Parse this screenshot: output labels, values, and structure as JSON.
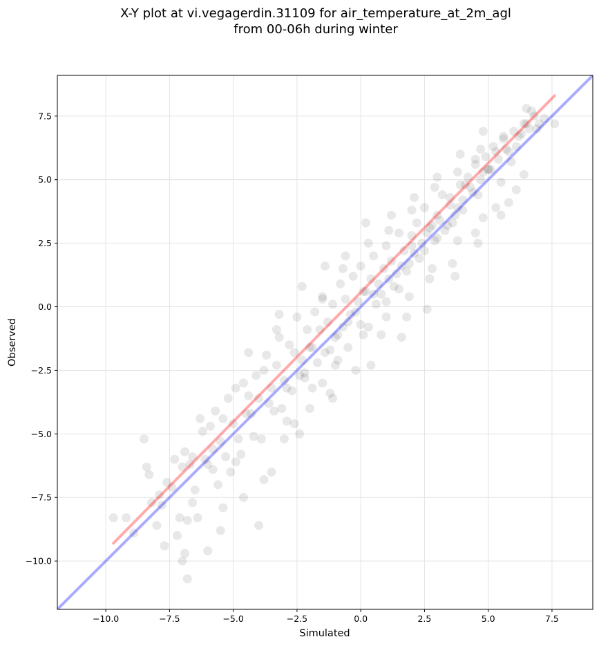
{
  "chart_data": {
    "type": "scatter",
    "title": "X-Y plot at vi.vegagerdin.31109 for air_temperature_at_2m_agl",
    "subtitle": "from 00-06h during winter",
    "xlabel": "Simulated",
    "ylabel": "Observed",
    "xlim": [
      -11.9,
      9.1
    ],
    "ylim": [
      -11.9,
      9.1
    ],
    "xticks": [
      -10.0,
      -7.5,
      -5.0,
      -2.5,
      0.0,
      2.5,
      5.0,
      7.5
    ],
    "xtick_labels": [
      "−10.0",
      "−7.5",
      "−5.0",
      "−2.5",
      "0.0",
      "2.5",
      "5.0",
      "7.5"
    ],
    "yticks": [
      -10.0,
      -7.5,
      -5.0,
      -2.5,
      0.0,
      2.5,
      5.0,
      7.5
    ],
    "ytick_labels": [
      "−10.0",
      "−7.5",
      "−5.0",
      "−2.5",
      "0.0",
      "2.5",
      "5.0",
      "7.5"
    ],
    "grid": true,
    "points": {
      "color": "#000000",
      "opacity": 0.09,
      "x": [
        -9.7,
        -9.2,
        -8.5,
        -8.3,
        -8.2,
        -8.0,
        -7.9,
        -7.8,
        -7.6,
        -7.4,
        -7.3,
        -7.1,
        -7.0,
        -6.9,
        -6.8,
        -6.7,
        -6.6,
        -6.5,
        -6.3,
        -6.2,
        -6.0,
        -5.9,
        -5.8,
        -5.7,
        -5.5,
        -5.4,
        -5.2,
        -5.0,
        -4.9,
        -4.8,
        -4.6,
        -4.4,
        -4.3,
        -4.1,
        -4.0,
        -3.8,
        -3.7,
        -3.5,
        -3.3,
        -3.2,
        -3.0,
        -2.8,
        -2.6,
        -2.5,
        -2.3,
        -2.1,
        -2.0,
        -1.8,
        -1.6,
        -1.5,
        -1.3,
        -1.1,
        -1.0,
        -0.8,
        -0.6,
        -0.5,
        -0.3,
        -0.1,
        0.0,
        0.2,
        0.4,
        0.5,
        0.7,
        0.9,
        1.0,
        1.2,
        1.4,
        1.5,
        1.7,
        1.9,
        2.0,
        2.2,
        2.4,
        2.5,
        2.7,
        2.9,
        3.0,
        3.2,
        3.4,
        3.5,
        3.7,
        3.9,
        4.0,
        4.2,
        4.4,
        4.5,
        4.7,
        4.9,
        5.0,
        5.2,
        5.4,
        5.6,
        5.8,
        6.0,
        6.2,
        6.4,
        6.6,
        6.8,
        7.0,
        7.2,
        7.6,
        -8.9,
        -8.4,
        -7.7,
        -7.2,
        -6.6,
        -6.1,
        -5.6,
        -5.1,
        -4.7,
        -4.2,
        -3.6,
        -3.1,
        -2.7,
        -2.2,
        -1.7,
        -1.2,
        -0.7,
        -0.2,
        0.3,
        0.8,
        1.3,
        1.8,
        2.3,
        2.8,
        3.3,
        3.8,
        4.3,
        4.8,
        5.3,
        5.9,
        6.5,
        -7.0,
        -6.4,
        -5.8,
        -5.3,
        -4.9,
        -4.5,
        -3.9,
        -3.4,
        -2.9,
        -2.4,
        -1.9,
        -1.4,
        -0.9,
        -0.4,
        0.1,
        0.6,
        1.1,
        1.6,
        2.1,
        2.6,
        3.1,
        3.6,
        4.1,
        4.6,
        5.1,
        5.7,
        6.3,
        6.9,
        -6.8,
        -6.0,
        -5.5,
        -4.6,
        -4.0,
        -3.5,
        -3.0,
        -2.6,
        -2.0,
        -1.5,
        -1.0,
        -0.5,
        0.0,
        0.5,
        1.0,
        1.5,
        2.0,
        2.5,
        3.0,
        3.5,
        4.0,
        4.5,
        5.0,
        5.5,
        6.1,
        6.7,
        -3.2,
        -2.3,
        -1.4,
        -0.6,
        0.3,
        1.2,
        2.1,
        3.0,
        3.9,
        4.8,
        -4.4,
        -3.3,
        -2.2,
        -1.2,
        -0.2,
        0.8,
        1.8,
        2.8,
        3.8,
        4.8,
        5.8,
        -1.5,
        -0.7,
        0.2,
        1.1,
        2.0,
        2.9,
        3.8,
        4.7,
        5.6,
        6.5,
        -2.9,
        -1.9,
        -0.9,
        0.1,
        1.0,
        1.9,
        2.7,
        3.6,
        4.5,
        5.3,
        6.1,
        -6.9,
        -5.4,
        -3.8,
        -2.4,
        -1.1,
        0.4,
        1.6,
        2.6,
        3.7,
        4.6,
        5.5,
        6.4
      ],
      "y": [
        -8.3,
        -8.3,
        -5.2,
        -6.6,
        -7.7,
        -8.6,
        -7.4,
        -7.8,
        -6.9,
        -7.1,
        -6.0,
        -8.3,
        -6.3,
        -5.7,
        -8.4,
        -6.2,
        -5.9,
        -7.2,
        -4.4,
        -4.9,
        -6.2,
        -4.7,
        -5.6,
        -4.1,
        -5.3,
        -4.4,
        -3.6,
        -4.6,
        -3.2,
        -5.2,
        -3.0,
        -3.5,
        -4.2,
        -2.7,
        -3.6,
        -2.5,
        -1.9,
        -3.2,
        -2.3,
        -1.2,
        -2.9,
        -1.5,
        -1.8,
        -0.4,
        -2.1,
        -0.9,
        -1.6,
        -0.2,
        -0.9,
        0.4,
        -0.6,
        0.1,
        -1.2,
        0.9,
        0.3,
        -0.6,
        1.2,
        0.2,
        1.6,
        0.6,
        1.1,
        2.0,
        0.9,
        1.5,
        2.4,
        1.8,
        1.3,
        2.9,
        2.2,
        1.7,
        2.8,
        3.3,
        2.5,
        3.9,
        3.1,
        2.6,
        3.6,
        4.4,
        3.2,
        4.0,
        3.6,
        4.8,
        4.2,
        5.1,
        4.5,
        5.6,
        5.0,
        5.9,
        5.4,
        6.3,
        5.8,
        6.6,
        6.1,
        6.9,
        6.7,
        7.2,
        7.0,
        7.5,
        7.2,
        7.4,
        7.2,
        -8.9,
        -6.3,
        -9.4,
        -9.0,
        -7.7,
        -6.0,
        -7.0,
        -6.5,
        -5.8,
        -5.1,
        -3.8,
        -4.0,
        -3.3,
        -2.8,
        -2.2,
        -1.7,
        -0.8,
        -0.2,
        -0.8,
        0.5,
        0.8,
        1.4,
        1.9,
        3.2,
        3.0,
        3.9,
        4.7,
        5.3,
        6.1,
        5.7,
        7.2,
        -10.0,
        -8.3,
        -6.4,
        -5.9,
        -6.1,
        -4.2,
        -5.2,
        -4.1,
        -3.2,
        -2.7,
        -1.6,
        -1.8,
        -1.1,
        -0.3,
        0.6,
        0.1,
        1.1,
        1.6,
        2.1,
        2.9,
        3.4,
        3.3,
        4.8,
        4.4,
        5.4,
        6.2,
        6.8,
        7.0,
        -10.7,
        -9.6,
        -8.8,
        -7.5,
        -8.6,
        -6.5,
        -5.2,
        -4.6,
        -4.0,
        -3.0,
        -2.3,
        -1.6,
        -0.7,
        0.5,
        0.2,
        0.7,
        2.4,
        2.2,
        2.7,
        4.3,
        3.8,
        5.8,
        5.4,
        4.9,
        6.3,
        7.7,
        -0.3,
        0.8,
        1.6,
        2.0,
        2.5,
        3.6,
        4.3,
        5.1,
        6.0,
        6.9,
        -1.8,
        -0.9,
        -2.6,
        -3.4,
        -2.5,
        -1.1,
        -0.4,
        1.5,
        2.6,
        3.5,
        4.1,
        0.3,
        1.5,
        3.3,
        3.0,
        3.8,
        4.7,
        5.3,
        6.2,
        6.7,
        7.8,
        -4.5,
        -3.2,
        -2.1,
        -1.1,
        -0.4,
        0.4,
        1.1,
        1.7,
        2.9,
        3.9,
        4.6,
        -9.7,
        -7.9,
        -6.8,
        -5.0,
        -3.6,
        -2.3,
        -1.2,
        -0.1,
        1.2,
        2.5,
        3.6,
        5.2
      ]
    },
    "identity_line": {
      "color": "#0000ff",
      "opacity": 0.33,
      "x": [
        -11.9,
        9.1
      ],
      "y": [
        -11.9,
        9.1
      ]
    },
    "fit_line": {
      "color": "#ff0000",
      "opacity": 0.33,
      "x": [
        -9.7,
        7.6
      ],
      "y": [
        -9.3,
        8.3
      ]
    }
  }
}
